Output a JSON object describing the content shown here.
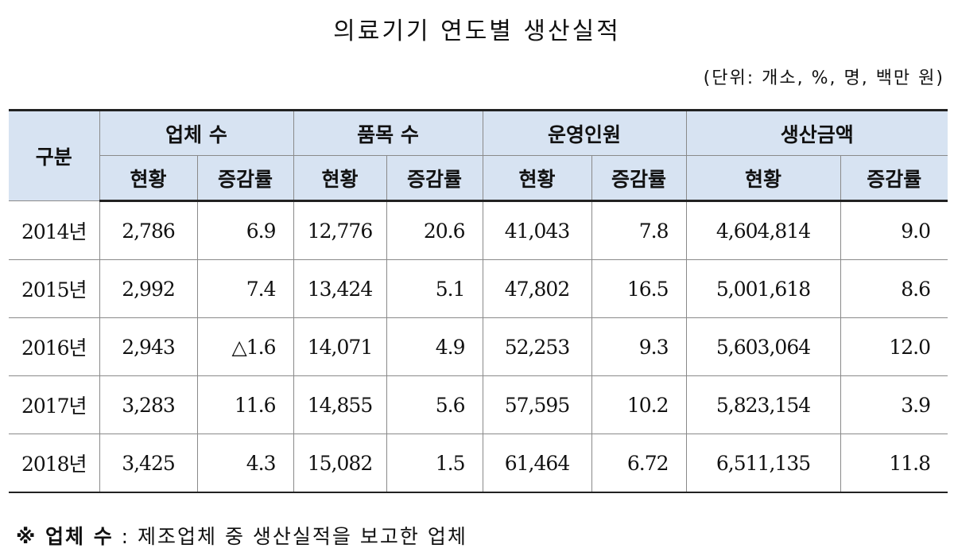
{
  "title": "의료기기 연도별 생산실적",
  "unit": "(단위: 개소, %, 명, 백만 원)",
  "header": {
    "group": "구분",
    "columns": [
      "업체 수",
      "품목 수",
      "운영인원",
      "생산금액"
    ],
    "sub_current": "현황",
    "sub_change": "증감률"
  },
  "rows": [
    {
      "year": "2014년",
      "firms": "2,786",
      "firms_rate": "6.9",
      "items": "12,776",
      "items_rate": "20.6",
      "staff": "41,043",
      "staff_rate": "7.8",
      "amount": "4,604,814",
      "amount_rate": "9.0"
    },
    {
      "year": "2015년",
      "firms": "2,992",
      "firms_rate": "7.4",
      "items": "13,424",
      "items_rate": "5.1",
      "staff": "47,802",
      "staff_rate": "16.5",
      "amount": "5,001,618",
      "amount_rate": "8.6"
    },
    {
      "year": "2016년",
      "firms": "2,943",
      "firms_rate": "△1.6",
      "items": "14,071",
      "items_rate": "4.9",
      "staff": "52,253",
      "staff_rate": "9.3",
      "amount": "5,603,064",
      "amount_rate": "12.0"
    },
    {
      "year": "2017년",
      "firms": "3,283",
      "firms_rate": "11.6",
      "items": "14,855",
      "items_rate": "5.6",
      "staff": "57,595",
      "staff_rate": "10.2",
      "amount": "5,823,154",
      "amount_rate": "3.9"
    },
    {
      "year": "2018년",
      "firms": "3,425",
      "firms_rate": "4.3",
      "items": "15,082",
      "items_rate": "1.5",
      "staff": "61,464",
      "staff_rate": "6.72",
      "amount": "6,511,135",
      "amount_rate": "11.8"
    }
  ],
  "footnote": {
    "mark": "※ 업체 수",
    "text": ": 제조업체 중 생산실적을 보고한 업체"
  },
  "colors": {
    "header_bg": "#d7e3f2"
  }
}
